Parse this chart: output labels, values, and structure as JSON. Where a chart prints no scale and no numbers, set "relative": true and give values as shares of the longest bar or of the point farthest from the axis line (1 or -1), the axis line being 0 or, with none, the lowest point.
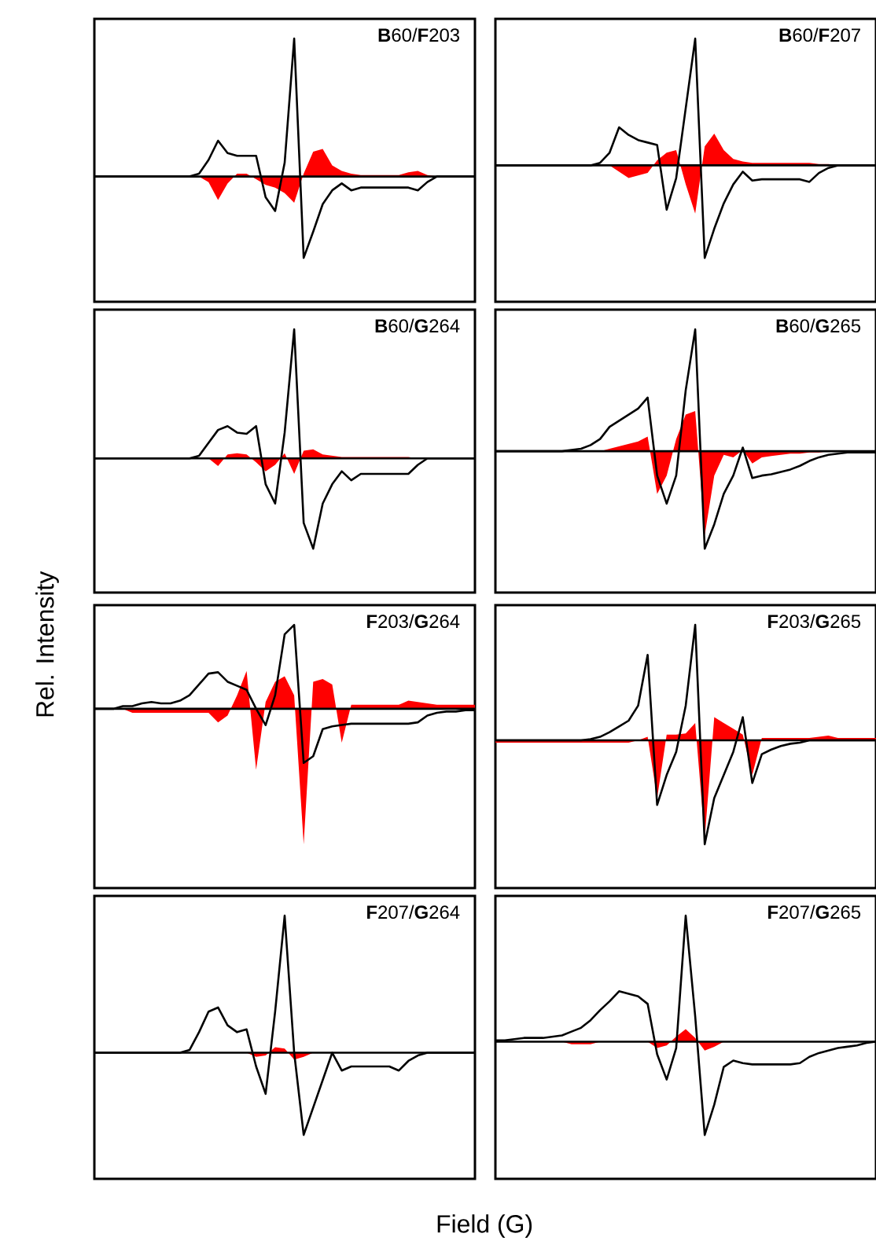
{
  "chart_data": [
    {
      "type": "line",
      "title": "**B**60/**F**203",
      "relative": true,
      "categories": [
        null,
        null,
        null,
        null,
        null,
        null,
        null,
        null,
        null,
        null,
        null,
        null,
        null,
        null,
        null,
        null,
        null,
        null,
        null,
        null,
        null,
        null,
        null,
        null,
        null,
        null,
        null,
        null,
        null,
        null,
        null,
        null,
        null,
        null,
        null,
        null,
        null,
        null,
        null,
        null,
        null
      ],
      "series": [
        {
          "type": "area",
          "color": "#ff0000",
          "values": [
            0,
            0,
            0,
            0,
            0,
            0,
            0,
            0,
            0,
            0,
            0,
            0,
            -0.04,
            -0.17,
            -0.05,
            0.02,
            0.02,
            -0.02,
            -0.06,
            -0.08,
            -0.12,
            -0.19,
            0.02,
            0.18,
            0.2,
            0.08,
            0.04,
            0.02,
            0.01,
            0.01,
            0.01,
            0.01,
            0.01,
            0.03,
            0.04,
            0.01,
            0,
            0,
            0,
            0,
            0
          ]
        },
        {
          "type": "line",
          "color": "#000000",
          "values": [
            0,
            0,
            0,
            0,
            0,
            0,
            0,
            0,
            0,
            0,
            0,
            0.02,
            0.12,
            0.26,
            0.17,
            0.15,
            0.15,
            0.15,
            -0.15,
            -0.25,
            0.1,
            1.0,
            -0.59,
            -0.4,
            -0.2,
            -0.1,
            -0.05,
            -0.1,
            -0.08,
            -0.08,
            -0.08,
            -0.08,
            -0.08,
            -0.08,
            -0.1,
            -0.04,
            0,
            0,
            0,
            0,
            0
          ]
        }
      ]
    },
    {
      "type": "line",
      "title": "**B**60/**F**207",
      "relative": true,
      "categories": [
        null,
        null,
        null,
        null,
        null,
        null,
        null,
        null,
        null,
        null,
        null,
        null,
        null,
        null,
        null,
        null,
        null,
        null,
        null,
        null,
        null,
        null,
        null,
        null,
        null,
        null,
        null,
        null,
        null,
        null,
        null,
        null,
        null,
        null,
        null,
        null,
        null,
        null,
        null,
        null,
        null
      ],
      "series": [
        {
          "type": "area",
          "color": "#ff0000",
          "values": [
            0,
            0,
            0,
            0,
            0,
            0,
            0,
            0,
            0,
            0,
            0,
            0,
            0,
            -0.05,
            -0.1,
            -0.08,
            -0.06,
            0.04,
            0.1,
            0.12,
            -0.15,
            -0.38,
            0.15,
            0.25,
            0.12,
            0.05,
            0.03,
            0.02,
            0.02,
            0.02,
            0.02,
            0.02,
            0.02,
            0.02,
            0.01,
            0.01,
            0,
            0,
            0,
            0,
            0
          ]
        },
        {
          "type": "line",
          "color": "#000000",
          "values": [
            0,
            0,
            0,
            0,
            0,
            0,
            0,
            0,
            0,
            0,
            0,
            0.02,
            0.1,
            0.3,
            0.24,
            0.2,
            0.18,
            0.16,
            -0.35,
            -0.1,
            0.45,
            1.0,
            -0.73,
            -0.5,
            -0.3,
            -0.15,
            -0.05,
            -0.12,
            -0.11,
            -0.11,
            -0.11,
            -0.11,
            -0.11,
            -0.13,
            -0.06,
            -0.02,
            0,
            0,
            0,
            0,
            0
          ]
        }
      ]
    },
    {
      "type": "line",
      "title": "**B**60/**G**264",
      "relative": true,
      "categories": [
        null,
        null,
        null,
        null,
        null,
        null,
        null,
        null,
        null,
        null,
        null,
        null,
        null,
        null,
        null,
        null,
        null,
        null,
        null,
        null,
        null,
        null,
        null,
        null,
        null,
        null,
        null,
        null,
        null,
        null,
        null,
        null,
        null,
        null,
        null,
        null,
        null,
        null,
        null,
        null,
        null
      ],
      "series": [
        {
          "type": "area",
          "color": "#ff0000",
          "values": [
            0,
            0,
            0,
            0,
            0,
            0,
            0,
            0,
            0,
            0,
            0,
            0,
            0,
            -0.06,
            0.03,
            0.04,
            0.03,
            -0.03,
            -0.1,
            -0.05,
            0.04,
            -0.12,
            0.06,
            0.07,
            0.03,
            0.02,
            0.01,
            0.01,
            0.01,
            0.01,
            0.01,
            0.01,
            0.01,
            0.01,
            0,
            0,
            0,
            0,
            0,
            0,
            0
          ]
        },
        {
          "type": "line",
          "color": "#000000",
          "values": [
            0,
            0,
            0,
            0,
            0,
            0,
            0,
            0,
            0,
            0,
            0,
            0.02,
            0.12,
            0.22,
            0.25,
            0.2,
            0.19,
            0.25,
            -0.2,
            -0.35,
            0.2,
            1.0,
            -0.5,
            -0.7,
            -0.35,
            -0.2,
            -0.1,
            -0.17,
            -0.12,
            -0.12,
            -0.12,
            -0.12,
            -0.12,
            -0.12,
            -0.05,
            0,
            0,
            0,
            0,
            0,
            0
          ]
        }
      ]
    },
    {
      "type": "line",
      "title": "**B**60/**G**265",
      "relative": true,
      "categories": [
        null,
        null,
        null,
        null,
        null,
        null,
        null,
        null,
        null,
        null,
        null,
        null,
        null,
        null,
        null,
        null,
        null,
        null,
        null,
        null,
        null,
        null,
        null,
        null,
        null,
        null,
        null,
        null,
        null,
        null,
        null,
        null,
        null,
        null,
        null,
        null,
        null,
        null,
        null,
        null,
        null
      ],
      "series": [
        {
          "type": "area",
          "color": "#ff0000",
          "values": [
            0,
            0,
            0,
            0,
            0,
            0,
            0,
            0,
            0,
            0,
            0,
            0,
            0.02,
            0.04,
            0.06,
            0.08,
            0.12,
            -0.35,
            -0.2,
            0.1,
            0.3,
            0.33,
            -0.69,
            -0.2,
            -0.03,
            -0.05,
            0.01,
            -0.1,
            -0.05,
            -0.04,
            -0.03,
            -0.02,
            -0.02,
            -0.01,
            -0.01,
            0,
            0,
            0,
            0,
            0,
            0
          ]
        },
        {
          "type": "line",
          "color": "#000000",
          "values": [
            0,
            0,
            0,
            0,
            0,
            0,
            0,
            0,
            0.01,
            0.02,
            0.05,
            0.1,
            0.2,
            0.25,
            0.3,
            0.35,
            0.44,
            -0.2,
            -0.43,
            -0.2,
            0.5,
            1.0,
            -0.8,
            -0.6,
            -0.35,
            -0.2,
            0.03,
            -0.22,
            -0.2,
            -0.19,
            -0.17,
            -0.15,
            -0.12,
            -0.08,
            -0.05,
            -0.03,
            -0.02,
            -0.01,
            -0.01,
            -0.01,
            -0.01
          ]
        }
      ]
    },
    {
      "type": "line",
      "title": "**F**203/**G**264",
      "ylabel": "Rel. Intensity",
      "relative": true,
      "categories": [
        null,
        null,
        null,
        null,
        null,
        null,
        null,
        null,
        null,
        null,
        null,
        null,
        null,
        null,
        null,
        null,
        null,
        null,
        null,
        null,
        null,
        null,
        null,
        null,
        null,
        null,
        null,
        null,
        null,
        null,
        null,
        null,
        null,
        null,
        null,
        null,
        null,
        null,
        null,
        null,
        null
      ],
      "series": [
        {
          "type": "area",
          "color": "#ff0000",
          "values": [
            0,
            0,
            0,
            0,
            -0.03,
            -0.03,
            -0.03,
            -0.03,
            -0.03,
            -0.03,
            -0.03,
            -0.03,
            -0.03,
            -0.1,
            -0.05,
            0.1,
            0.28,
            -0.45,
            0.05,
            0.2,
            0.24,
            0.1,
            -1.0,
            0.2,
            0.22,
            0.18,
            -0.25,
            0.03,
            0.03,
            0.03,
            0.03,
            0.03,
            0.03,
            0.06,
            0.05,
            0.04,
            0.03,
            0.03,
            0.03,
            0.03,
            0.03
          ]
        },
        {
          "type": "line",
          "color": "#000000",
          "values": [
            0,
            0,
            0,
            0.02,
            0.02,
            0.04,
            0.05,
            0.04,
            0.04,
            0.06,
            0.1,
            0.18,
            0.26,
            0.27,
            0.2,
            0.17,
            0.14,
            0.0,
            -0.12,
            0.1,
            0.55,
            0.62,
            -0.4,
            -0.35,
            -0.15,
            -0.13,
            -0.12,
            -0.11,
            -0.11,
            -0.11,
            -0.11,
            -0.11,
            -0.11,
            -0.11,
            -0.1,
            -0.05,
            -0.03,
            -0.02,
            -0.02,
            -0.01,
            -0.01
          ]
        }
      ]
    },
    {
      "type": "line",
      "title": "**F**203/**G**265",
      "relative": true,
      "categories": [
        null,
        null,
        null,
        null,
        null,
        null,
        null,
        null,
        null,
        null,
        null,
        null,
        null,
        null,
        null,
        null,
        null,
        null,
        null,
        null,
        null,
        null,
        null,
        null,
        null,
        null,
        null,
        null,
        null,
        null,
        null,
        null,
        null,
        null,
        null,
        null,
        null,
        null,
        null,
        null,
        null
      ],
      "series": [
        {
          "type": "area",
          "color": "#ff0000",
          "values": [
            -0.02,
            -0.02,
            -0.02,
            -0.02,
            -0.02,
            -0.02,
            -0.02,
            -0.02,
            -0.02,
            -0.02,
            -0.02,
            -0.02,
            -0.02,
            -0.02,
            -0.02,
            0,
            0.03,
            -0.5,
            0.05,
            0.05,
            0.06,
            0.15,
            -0.85,
            0.2,
            0.15,
            0.1,
            0.05,
            -0.3,
            0.02,
            0.02,
            0.02,
            0.02,
            0.02,
            0.02,
            0.03,
            0.04,
            0.02,
            0.02,
            0.02,
            0.02,
            0.02
          ]
        },
        {
          "type": "line",
          "color": "#000000",
          "values": [
            0,
            0,
            0,
            0,
            0,
            0,
            0,
            0,
            0,
            0,
            0.01,
            0.03,
            0.07,
            0.12,
            0.17,
            0.3,
            0.74,
            -0.56,
            -0.3,
            -0.1,
            0.3,
            1.0,
            -0.9,
            -0.5,
            -0.3,
            -0.1,
            0.2,
            -0.37,
            -0.12,
            -0.08,
            -0.05,
            -0.03,
            -0.02,
            0,
            0,
            0,
            0,
            0,
            0,
            0,
            0
          ]
        }
      ]
    },
    {
      "type": "line",
      "title": "**F**207/**G**264",
      "xlabel": "Field (G)",
      "relative": true,
      "categories": [
        null,
        null,
        null,
        null,
        null,
        null,
        null,
        null,
        null,
        null,
        null,
        null,
        null,
        null,
        null,
        null,
        null,
        null,
        null,
        null,
        null,
        null,
        null,
        null,
        null,
        null,
        null,
        null,
        null,
        null,
        null,
        null,
        null,
        null,
        null,
        null,
        null,
        null,
        null,
        null,
        null
      ],
      "series": [
        {
          "type": "area",
          "color": "#ff0000",
          "values": [
            0,
            0,
            0,
            0,
            0,
            0,
            0,
            0,
            0,
            0,
            0,
            0,
            0,
            0,
            0,
            0,
            0,
            -0.03,
            -0.02,
            0.04,
            0.03,
            -0.05,
            -0.03,
            0,
            0,
            0,
            0,
            0,
            0,
            0,
            0,
            0,
            0,
            0,
            0,
            0,
            0,
            0,
            0,
            0,
            0
          ]
        },
        {
          "type": "line",
          "color": "#000000",
          "values": [
            0,
            0,
            0,
            0,
            0,
            0,
            0,
            0,
            0,
            0,
            0.02,
            0.15,
            0.3,
            0.33,
            0.2,
            0.15,
            0.17,
            -0.1,
            -0.3,
            0.3,
            1.0,
            0.0,
            -0.6,
            -0.4,
            -0.2,
            0.0,
            -0.13,
            -0.1,
            -0.1,
            -0.1,
            -0.1,
            -0.1,
            -0.13,
            -0.06,
            -0.02,
            0,
            0,
            0,
            0,
            0,
            0
          ]
        }
      ]
    },
    {
      "type": "line",
      "title": "**F**207/**G**265",
      "relative": true,
      "categories": [
        null,
        null,
        null,
        null,
        null,
        null,
        null,
        null,
        null,
        null,
        null,
        null,
        null,
        null,
        null,
        null,
        null,
        null,
        null,
        null,
        null,
        null,
        null,
        null,
        null,
        null,
        null,
        null,
        null,
        null,
        null,
        null,
        null,
        null,
        null,
        null,
        null,
        null,
        null,
        null,
        null
      ],
      "series": [
        {
          "type": "area",
          "color": "#ff0000",
          "values": [
            0,
            0,
            0,
            0,
            0,
            0,
            0,
            0,
            -0.02,
            -0.02,
            -0.02,
            0,
            0,
            0,
            0,
            0,
            0,
            -0.05,
            -0.03,
            0.04,
            0.1,
            0.03,
            -0.07,
            -0.04,
            0,
            0,
            0,
            0,
            0,
            0,
            0,
            0,
            0,
            0,
            0,
            0,
            0,
            0,
            0,
            0,
            0
          ]
        },
        {
          "type": "line",
          "color": "#000000",
          "values": [
            0.01,
            0.01,
            0.02,
            0.03,
            0.03,
            0.03,
            0.04,
            0.05,
            0.08,
            0.11,
            0.17,
            0.25,
            0.32,
            0.4,
            0.38,
            0.36,
            0.3,
            -0.1,
            -0.3,
            -0.05,
            1.0,
            0.2,
            -0.74,
            -0.5,
            -0.2,
            -0.15,
            -0.17,
            -0.18,
            -0.18,
            -0.18,
            -0.18,
            -0.18,
            -0.17,
            -0.12,
            -0.09,
            -0.07,
            -0.05,
            -0.04,
            -0.03,
            -0.01,
            0
          ]
        }
      ]
    }
  ]
}
